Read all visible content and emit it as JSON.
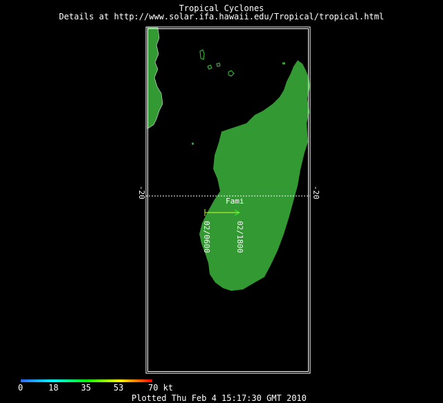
{
  "header": {
    "title": "Tropical Cyclones",
    "subtitle": "Details at http://www.solar.ifa.hawaii.edu/Tropical/tropical.html"
  },
  "map": {
    "latitude_line": {
      "value": "-20",
      "left_label": "-20",
      "right_label": "-20"
    },
    "storm": {
      "name": "Fami",
      "track_points": [
        {
          "label": "02/0600",
          "intensity_kt": 35
        },
        {
          "label": "02/1800",
          "intensity_kt": 35
        }
      ]
    },
    "colors": {
      "land": "#339933",
      "ocean": "#000000",
      "frame": "#ffffff",
      "track": "#ccff33",
      "grid": "#ffffff"
    }
  },
  "legend": {
    "unit": "kt",
    "ticks": [
      "0",
      "18",
      "35",
      "53",
      "70 kt"
    ],
    "gradient": [
      "#2b6bff",
      "#00ffff",
      "#00ff00",
      "#ffff00",
      "#ff0000"
    ]
  },
  "footer": {
    "plotted": "Plotted Thu Feb 4 15:17:30 GMT 2010"
  }
}
